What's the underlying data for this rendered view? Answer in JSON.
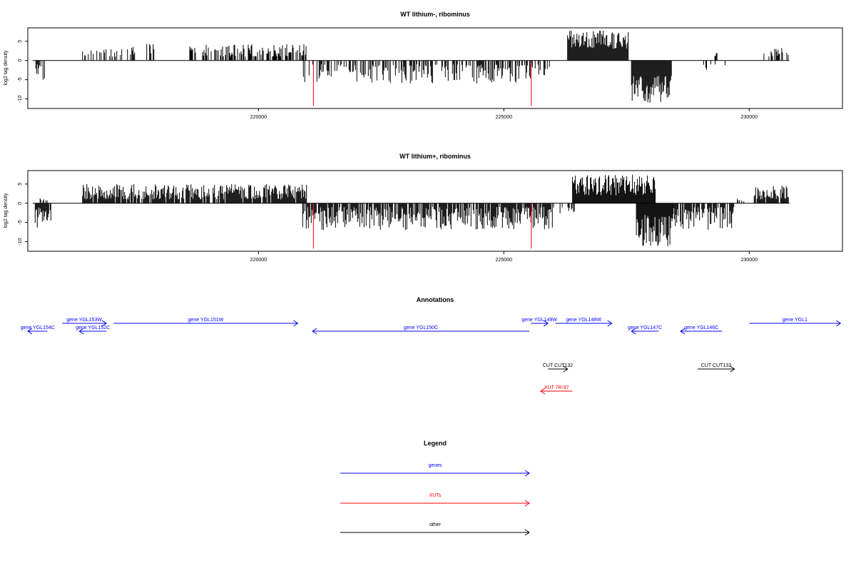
{
  "chart_data": [
    {
      "type": "bar",
      "title": "WT lithium-, ribominus",
      "ylabel": "log2 tag density",
      "xlim": [
        215300,
        231900
      ],
      "ylim": [
        -12.5,
        8.5
      ],
      "yticks": [
        -10,
        -5,
        0,
        5
      ],
      "xticks": [
        220000,
        225000,
        230000
      ],
      "series": [
        {
          "strand": "plus",
          "color": "#000000",
          "segments": [
            {
              "from": 216400,
              "to": 217200,
              "density": 0.3,
              "min": 1,
              "max": 3
            },
            {
              "from": 217200,
              "to": 218000,
              "density": 0.25,
              "min": 1,
              "max": 4.5
            },
            {
              "from": 218600,
              "to": 221000,
              "density": 0.55,
              "min": 1,
              "max": 4.3
            },
            {
              "from": 226300,
              "to": 227550,
              "density": 1.0,
              "min": 3,
              "max": 7.8
            },
            {
              "from": 229300,
              "to": 229350,
              "density": 1.0,
              "min": 1,
              "max": 2
            },
            {
              "from": 230300,
              "to": 230800,
              "density": 0.5,
              "min": 1,
              "max": 3.5
            }
          ]
        },
        {
          "strand": "minus",
          "color": "#000000",
          "segments": [
            {
              "from": 215450,
              "to": 215650,
              "density": 0.7,
              "min": 1,
              "max": 5
            },
            {
              "from": 220900,
              "to": 226000,
              "density": 0.45,
              "min": 1,
              "max": 6
            },
            {
              "from": 227600,
              "to": 228420,
              "density": 1.0,
              "min": 4,
              "max": 11.5
            },
            {
              "from": 229000,
              "to": 229800,
              "density": 0.12,
              "min": 1,
              "max": 2.5
            }
          ]
        },
        {
          "strand": "marker",
          "color": "#ff0000",
          "x": [
            221120,
            225560
          ],
          "values": [
            -11.8,
            -11.8
          ]
        }
      ]
    },
    {
      "type": "bar",
      "title": "WT lithium+, ribominus",
      "ylabel": "log2 tag density",
      "xlim": [
        215300,
        231900
      ],
      "ylim": [
        -12.5,
        8.5
      ],
      "yticks": [
        -10,
        -5,
        0,
        5
      ],
      "xticks": [
        220000,
        225000,
        230000
      ],
      "series": [
        {
          "strand": "plus",
          "color": "#000000",
          "segments": [
            {
              "from": 215550,
              "to": 215700,
              "density": 0.8,
              "min": 0.5,
              "max": 1.5
            },
            {
              "from": 216400,
              "to": 221000,
              "density": 0.85,
              "min": 1,
              "max": 5
            },
            {
              "from": 226400,
              "to": 228100,
              "density": 1.0,
              "min": 2,
              "max": 7.6
            },
            {
              "from": 229700,
              "to": 230000,
              "density": 0.35,
              "min": 0.5,
              "max": 1.5
            },
            {
              "from": 230100,
              "to": 230800,
              "density": 0.9,
              "min": 1,
              "max": 4.6
            }
          ]
        },
        {
          "strand": "minus",
          "color": "#000000",
          "segments": [
            {
              "from": 215450,
              "to": 215780,
              "density": 0.95,
              "min": 1,
              "max": 6.5
            },
            {
              "from": 220900,
              "to": 226000,
              "density": 0.8,
              "min": 1,
              "max": 7
            },
            {
              "from": 226000,
              "to": 226450,
              "density": 0.3,
              "min": 1,
              "max": 3
            },
            {
              "from": 227700,
              "to": 228450,
              "density": 1.0,
              "min": 3,
              "max": 11.5
            },
            {
              "from": 228450,
              "to": 229700,
              "density": 0.85,
              "min": 1,
              "max": 7
            }
          ]
        },
        {
          "strand": "marker",
          "color": "#ff0000",
          "x": [
            221120,
            225560
          ],
          "values": [
            -11.8,
            -11.8
          ]
        }
      ]
    }
  ],
  "annotations": {
    "title": "Annotations",
    "features": [
      {
        "label": "gene YGL154C",
        "start": 215700,
        "end": 215300,
        "row": 1,
        "color": "#0000ff"
      },
      {
        "label": "gene YGL153W",
        "start": 216000,
        "end": 216900,
        "row": 0,
        "color": "#0000ff"
      },
      {
        "label": "gene YGL152C",
        "start": 216900,
        "end": 216350,
        "row": 1,
        "color": "#0000ff"
      },
      {
        "label": "gene YGL151W",
        "start": 217050,
        "end": 220800,
        "row": 0,
        "color": "#0000ff"
      },
      {
        "label": "gene YGL150C",
        "start": 225520,
        "end": 221100,
        "row": 1,
        "color": "#0000ff"
      },
      {
        "label": "gene YGL149W",
        "start": 225550,
        "end": 225900,
        "row": 0,
        "color": "#0000ff"
      },
      {
        "label": "gene YGL148W",
        "start": 226050,
        "end": 227200,
        "row": 0,
        "color": "#0000ff"
      },
      {
        "label": "gene YGL147C",
        "start": 228150,
        "end": 227600,
        "row": 1,
        "color": "#0000ff"
      },
      {
        "label": "gene YGL146C",
        "start": 229450,
        "end": 228600,
        "row": 1,
        "color": "#0000ff"
      },
      {
        "label": "gene YGL1",
        "start": 230000,
        "end": 231860,
        "row": 0,
        "color": "#0000ff"
      },
      {
        "label": "CUT CUT132",
        "start": 225900,
        "end": 226300,
        "row": 2,
        "color": "#000000"
      },
      {
        "label": "CUT CUT133",
        "start": 228950,
        "end": 229700,
        "row": 2,
        "color": "#000000"
      },
      {
        "label": "XUT 7R-97",
        "start": 226400,
        "end": 225750,
        "row": 3,
        "color": "#ff0000"
      }
    ]
  },
  "legend": {
    "title": "Legend",
    "items": [
      {
        "label": "genes",
        "color": "#0000ff"
      },
      {
        "label": "XUTs",
        "color": "#ff0000"
      },
      {
        "label": "other",
        "color": "#000000"
      }
    ]
  }
}
